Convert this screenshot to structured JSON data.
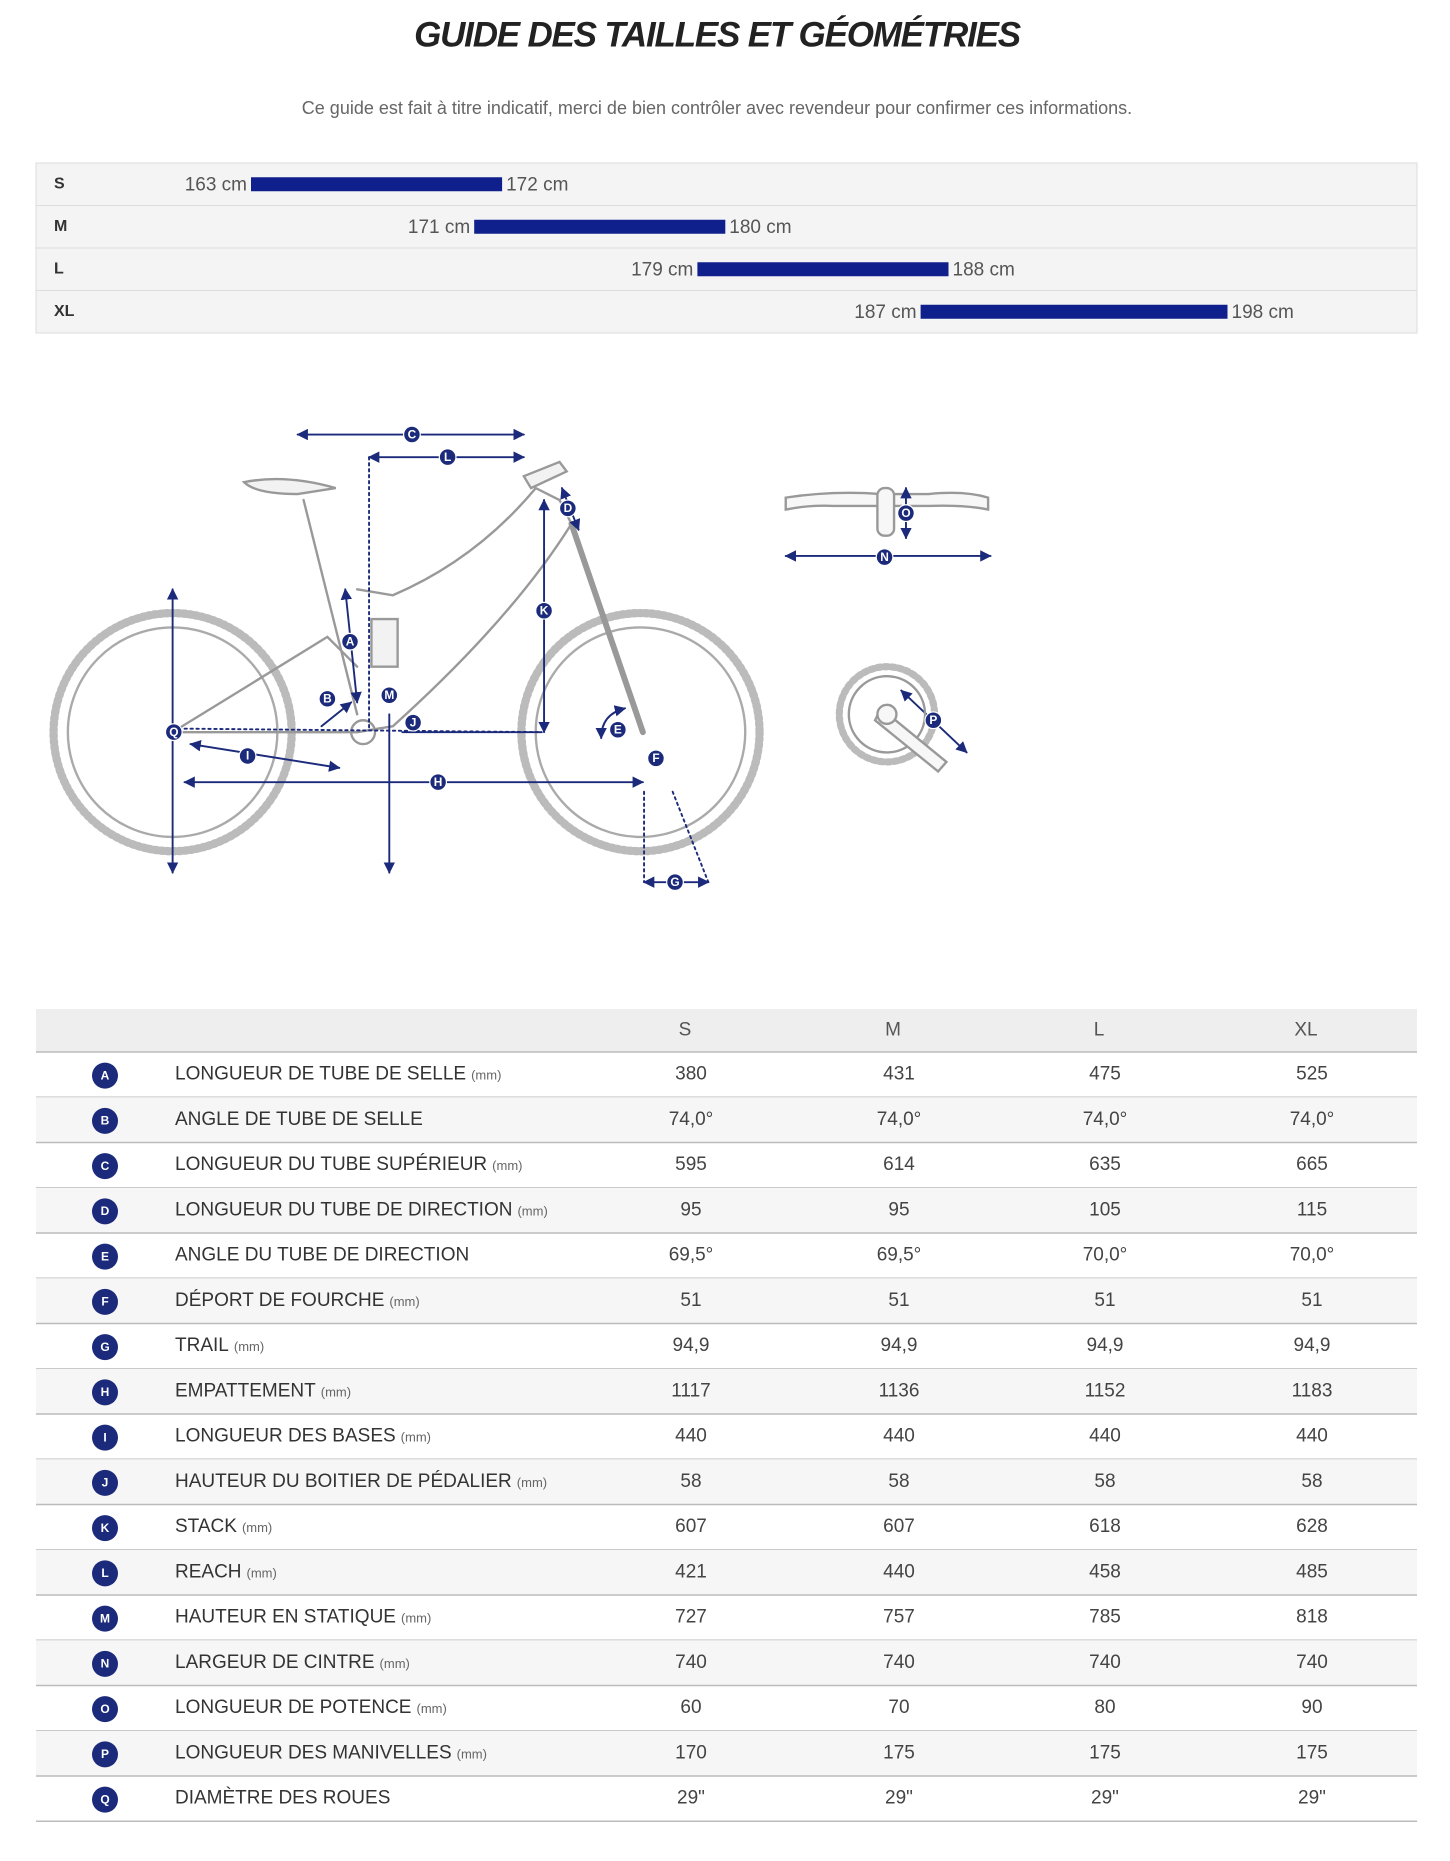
{
  "header": {
    "title": "GUIDE DES TAILLES ET GÉOMÉTRIES",
    "subtitle": "Ce guide est fait à titre indicatif, merci de bien contrôler avec revendeur pour confirmer ces informations."
  },
  "sizes": [
    {
      "size": "S",
      "from": 163,
      "from_label": "163 cm",
      "to": 172,
      "to_label": "172 cm"
    },
    {
      "size": "M",
      "from": 171,
      "from_label": "171 cm",
      "to": 180,
      "to_label": "180 cm"
    },
    {
      "size": "L",
      "from": 179,
      "from_label": "179 cm",
      "to": 188,
      "to_label": "188 cm"
    },
    {
      "size": "XL",
      "from": 187,
      "from_label": "187 cm",
      "to": 198,
      "to_label": "198 cm"
    }
  ],
  "table": {
    "columns": [
      "S",
      "M",
      "L",
      "XL"
    ],
    "rows": [
      {
        "letter": "A",
        "label": "LONGUEUR DE TUBE DE SELLE",
        "unit": "(mm)",
        "values": [
          "380",
          "431",
          "475",
          "525"
        ]
      },
      {
        "letter": "B",
        "label": "ANGLE DE TUBE DE SELLE",
        "values": [
          "74,0°",
          "74,0°",
          "74,0°",
          "74,0°"
        ]
      },
      {
        "letter": "C",
        "label": "LONGUEUR DU TUBE SUPÉRIEUR",
        "unit": "(mm)",
        "values": [
          "595",
          "614",
          "635",
          "665"
        ]
      },
      {
        "letter": "D",
        "label": "LONGUEUR DU TUBE DE DIRECTION",
        "unit": "(mm)",
        "values": [
          "95",
          "95",
          "105",
          "115"
        ]
      },
      {
        "letter": "E",
        "label": "ANGLE DU TUBE DE DIRECTION",
        "values": [
          "69,5°",
          "69,5°",
          "70,0°",
          "70,0°"
        ]
      },
      {
        "letter": "F",
        "label": "DÉPORT DE FOURCHE",
        "unit": "(mm)",
        "values": [
          "51",
          "51",
          "51",
          "51"
        ]
      },
      {
        "letter": "G",
        "label": "TRAIL",
        "unit": "(mm)",
        "values": [
          "94,9",
          "94,9",
          "94,9",
          "94,9"
        ]
      },
      {
        "letter": "H",
        "label": "EMPATTEMENT",
        "unit": "(mm)",
        "values": [
          "1117",
          "1136",
          "1152",
          "1183"
        ]
      },
      {
        "letter": "I",
        "label": "LONGUEUR DES BASES",
        "unit": "(mm)",
        "values": [
          "440",
          "440",
          "440",
          "440"
        ]
      },
      {
        "letter": "J",
        "label": "HAUTEUR DU BOITIER DE PÉDALIER",
        "unit": "(mm)",
        "values": [
          "58",
          "58",
          "58",
          "58"
        ]
      },
      {
        "letter": "K",
        "label": "STACK",
        "unit": "(mm)",
        "values": [
          "607",
          "607",
          "618",
          "628"
        ]
      },
      {
        "letter": "L",
        "label": "REACH",
        "unit": "(mm)",
        "values": [
          "421",
          "440",
          "458",
          "485"
        ]
      },
      {
        "letter": "M",
        "label": "HAUTEUR EN STATIQUE",
        "unit": "(mm)",
        "values": [
          "727",
          "757",
          "785",
          "818"
        ]
      },
      {
        "letter": "N",
        "label": "LARGEUR DE CINTRE",
        "unit": "(mm)",
        "values": [
          "740",
          "740",
          "740",
          "740"
        ]
      },
      {
        "letter": "O",
        "label": "LONGUEUR DE POTENCE",
        "unit": "(mm)",
        "values": [
          "60",
          "70",
          "80",
          "90"
        ]
      },
      {
        "letter": "P",
        "label": "LONGUEUR DES MANIVELLES",
        "unit": "(mm)",
        "values": [
          "170",
          "175",
          "175",
          "175"
        ]
      },
      {
        "letter": "Q",
        "label": "DIAMÈTRE DES ROUES",
        "values": [
          "29\"",
          "29\"",
          "29\"",
          "29\""
        ]
      }
    ]
  }
}
